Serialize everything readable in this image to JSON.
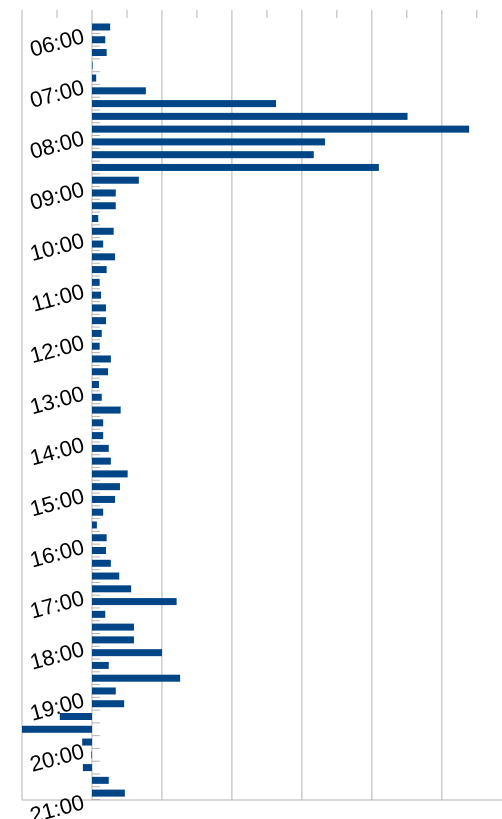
{
  "chart_data": {
    "type": "barh",
    "categories": [
      "06:00",
      null,
      null,
      null,
      "07:00",
      null,
      null,
      null,
      "08:00",
      null,
      null,
      null,
      "09:00",
      null,
      null,
      null,
      "10:00",
      null,
      null,
      null,
      "11:00",
      null,
      null,
      null,
      "12:00",
      null,
      null,
      null,
      "13:00",
      null,
      null,
      null,
      "14:00",
      null,
      null,
      null,
      "15:00",
      null,
      null,
      null,
      "16:00",
      null,
      null,
      null,
      "17:00",
      null,
      null,
      null,
      "18:00",
      null,
      null,
      null,
      "19:00",
      null,
      null,
      null,
      "20:00",
      null,
      null,
      null,
      "21:00"
    ],
    "values": [
      2.6,
      1.9,
      2.1,
      0.1,
      0.6,
      7.7,
      26.3,
      45.1,
      53.9,
      33.3,
      31.7,
      41,
      6.7,
      3.4,
      3.4,
      0.9,
      3.1,
      1.6,
      3.3,
      2.1,
      1.1,
      1.3,
      2,
      2,
      1.4,
      1.1,
      2.7,
      2.3,
      1,
      1.4,
      4.1,
      1.6,
      1.6,
      2.4,
      2.7,
      5.1,
      4,
      3.3,
      1.6,
      0.7,
      2.1,
      2,
      2.7,
      3.9,
      5.6,
      12.1,
      1.9,
      6,
      6,
      10,
      2.4,
      12.6,
      3.4,
      4.6,
      -4.6,
      -10,
      -1.4,
      -0.1,
      -1.3,
      2.4,
      4.7
    ],
    "color": "#004586",
    "xlim": [
      -10,
      58.6
    ],
    "xticks": [
      -10,
      0,
      10,
      20,
      30,
      40,
      50
    ],
    "grid": true
  }
}
